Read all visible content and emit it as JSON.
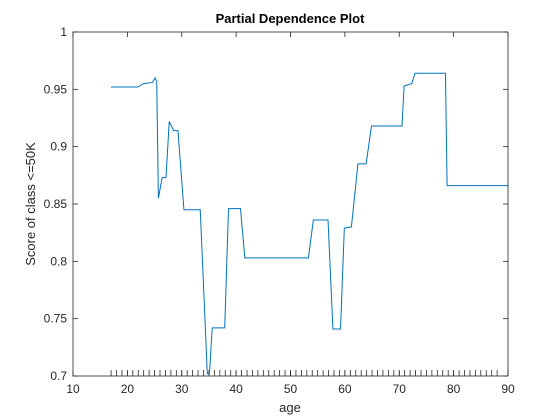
{
  "chart_data": {
    "type": "line",
    "title": "Partial Dependence Plot",
    "xlabel": "age",
    "ylabel": "Score of class <=50K",
    "xlim": [
      10,
      90
    ],
    "ylim": [
      0.7,
      1
    ],
    "xticks": [
      10,
      20,
      30,
      40,
      50,
      60,
      70,
      80,
      90
    ],
    "yticks": [
      0.7,
      0.75,
      0.8,
      0.85,
      0.9,
      0.95,
      1
    ],
    "xtick_labels": [
      "10",
      "20",
      "30",
      "40",
      "50",
      "60",
      "70",
      "80",
      "90"
    ],
    "ytick_labels": [
      "0.7",
      "0.75",
      "0.8",
      "0.85",
      "0.9",
      "0.95",
      "1"
    ],
    "grid": false,
    "line_color": "#0072BD",
    "rug_x": [
      17,
      18,
      19,
      20,
      21,
      22,
      23,
      24,
      25,
      26,
      27,
      28,
      29,
      30,
      31,
      32,
      33,
      34,
      35,
      36,
      37,
      38,
      39,
      40,
      41,
      42,
      43,
      44,
      45,
      46,
      47,
      48,
      49,
      50,
      51,
      52,
      53,
      54,
      55,
      56,
      57,
      58,
      59,
      60,
      61,
      62,
      63,
      64,
      65,
      66,
      67,
      68,
      69,
      70,
      71,
      72,
      73,
      74,
      75,
      76,
      77,
      78,
      79,
      80,
      81,
      82,
      83,
      84,
      85,
      86,
      87,
      88,
      90
    ],
    "series": [
      {
        "x": [
          17,
          21.9,
          23,
          24.6,
          25.1,
          25.4,
          25.7,
          26.4,
          27.1,
          27.7,
          28.5,
          29.3,
          30.4,
          31.1,
          33.4,
          34.7,
          35.1,
          35.6,
          37.9,
          38.6,
          40.8,
          41.6,
          46.9,
          50,
          53.3,
          54.2,
          56.9,
          57.8,
          59.2,
          59.9,
          61.2,
          62.4,
          63.9,
          64.9,
          67.4,
          70.5,
          70.9,
          72.3,
          72.9,
          78.5,
          78.8,
          90
        ],
        "y": [
          0.952,
          0.952,
          0.955,
          0.956,
          0.96,
          0.957,
          0.855,
          0.873,
          0.873,
          0.922,
          0.914,
          0.914,
          0.845,
          0.845,
          0.845,
          0.702,
          0.702,
          0.742,
          0.742,
          0.846,
          0.846,
          0.803,
          0.803,
          0.803,
          0.803,
          0.836,
          0.836,
          0.741,
          0.741,
          0.829,
          0.83,
          0.885,
          0.885,
          0.918,
          0.918,
          0.918,
          0.953,
          0.955,
          0.964,
          0.964,
          0.866,
          0.866
        ]
      }
    ]
  }
}
